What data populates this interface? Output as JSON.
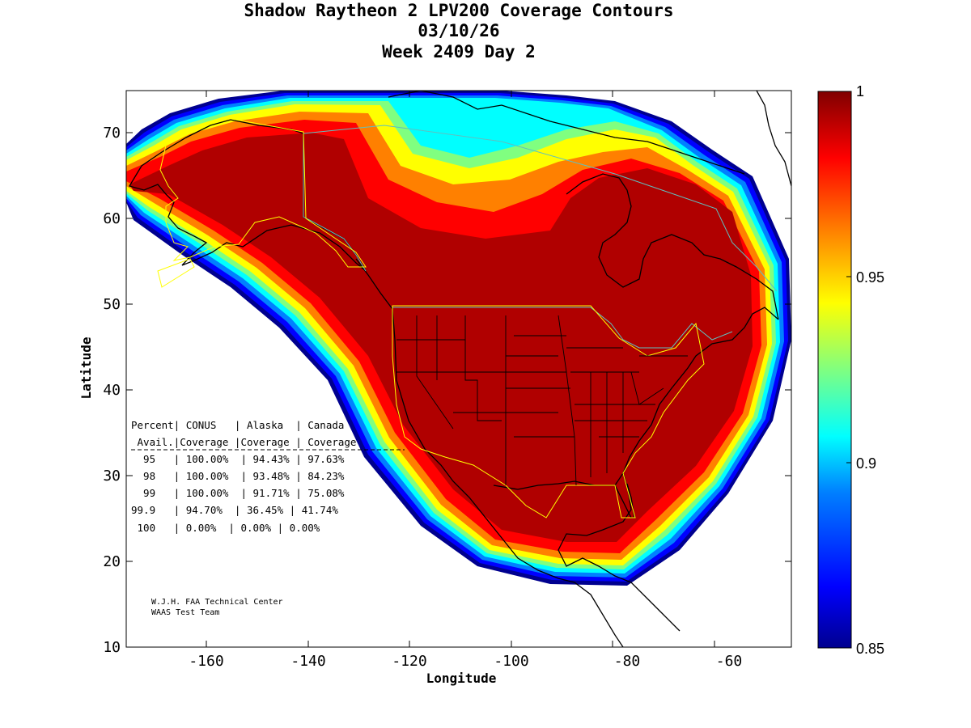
{
  "title": {
    "line1": "Shadow Raytheon 2 LPV200 Coverage Contours",
    "line2": "03/10/26",
    "line3": "Week 2409 Day 2"
  },
  "axes": {
    "xlabel": "Longitude",
    "ylabel": "Latitude",
    "xlim": [
      -175,
      -50
    ],
    "ylim": [
      10,
      75
    ],
    "xticks": [
      -160,
      -140,
      -120,
      -100,
      -80,
      -60
    ],
    "yticks": [
      10,
      20,
      30,
      40,
      50,
      60,
      70
    ]
  },
  "colorbar": {
    "min": 0.85,
    "max": 1,
    "ticks": [
      "1",
      "0.95",
      "0.9",
      "0.85"
    ],
    "colormap": "jet",
    "colors": [
      "#00008f",
      "#0000ff",
      "#0080ff",
      "#00ffff",
      "#80ff80",
      "#ffff00",
      "#ff8000",
      "#ff0000",
      "#800000"
    ]
  },
  "table": {
    "header1": "Percent| CONUS   | Alaska  | Canada",
    "header2": " Avail.|Coverage |Coverage | Coverage",
    "separator": "---------------------------------------",
    "rows": [
      "  95   | 100.00%  | 94.43% | 97.63%",
      "  98   | 100.00%  | 93.48% | 84.23%",
      "  99   | 100.00%  | 91.71% | 75.08%",
      "99.9   | 94.70%  | 36.45% | 41.74%",
      " 100   | 0.00%  | 0.00% | 0.00%"
    ]
  },
  "credits": {
    "line1": "W.J.H. FAA Technical Center",
    "line2": "WAAS Test Team"
  },
  "chart_data": {
    "type": "heatmap",
    "title": "Shadow Raytheon 2 LPV200 Coverage Contours",
    "xlabel": "Longitude",
    "ylabel": "Latitude",
    "xlim": [
      -175,
      -50
    ],
    "ylim": [
      10,
      75
    ],
    "color_range": [
      0.85,
      1
    ],
    "coverage_table": {
      "columns": [
        "Percent Avail.",
        "CONUS Coverage",
        "Alaska Coverage",
        "Canada Coverage"
      ],
      "rows": [
        [
          "95",
          "100.00%",
          "94.43%",
          "97.63%"
        ],
        [
          "98",
          "100.00%",
          "93.48%",
          "84.23%"
        ],
        [
          "99",
          "100.00%",
          "91.71%",
          "75.08%"
        ],
        [
          "99.9",
          "94.70%",
          "36.45%",
          "41.74%"
        ],
        [
          "100",
          "0.00%",
          "0.00%",
          "0.00%"
        ]
      ]
    }
  }
}
